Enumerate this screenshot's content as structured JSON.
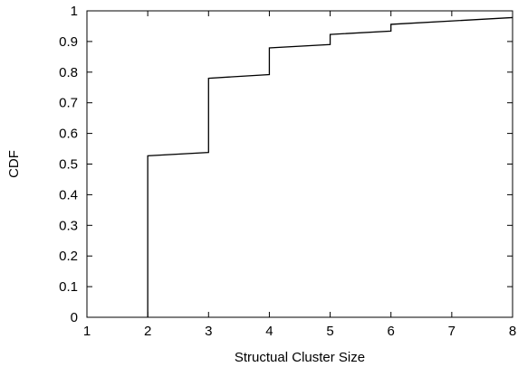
{
  "chart_data": {
    "type": "line",
    "step": true,
    "title": "",
    "xlabel": "Structual Cluster Size",
    "ylabel": "CDF",
    "xlim": [
      1,
      8
    ],
    "ylim": [
      0,
      1
    ],
    "xticks": [
      "1",
      "2",
      "3",
      "4",
      "5",
      "6",
      "7",
      "8"
    ],
    "yticks": [
      "0",
      "0.1",
      "0.2",
      "0.3",
      "0.4",
      "0.5",
      "0.6",
      "0.7",
      "0.8",
      "0.9",
      "1"
    ],
    "grid": false,
    "legend": "none",
    "series": [
      {
        "points": [
          [
            2,
            0
          ],
          [
            2,
            0.527
          ],
          [
            3,
            0.538
          ],
          [
            3,
            0.78
          ],
          [
            4,
            0.792
          ],
          [
            4,
            0.879
          ],
          [
            5,
            0.89
          ],
          [
            5,
            0.923
          ],
          [
            6,
            0.934
          ],
          [
            6,
            0.956
          ],
          [
            8,
            0.978
          ]
        ]
      }
    ],
    "color": "#000000"
  }
}
